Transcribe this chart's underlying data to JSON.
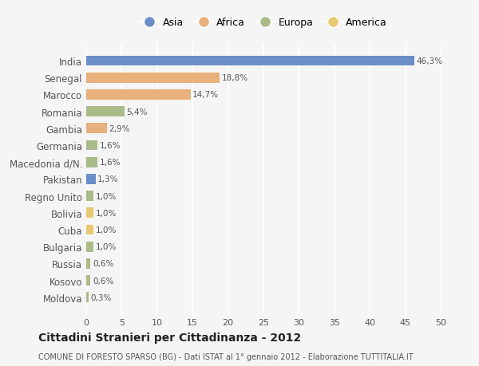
{
  "countries": [
    "Moldova",
    "Kosovo",
    "Russia",
    "Bulgaria",
    "Cuba",
    "Bolivia",
    "Regno Unito",
    "Pakistan",
    "Macedonia d/N.",
    "Germania",
    "Gambia",
    "Romania",
    "Marocco",
    "Senegal",
    "India"
  ],
  "values": [
    0.3,
    0.6,
    0.6,
    1.0,
    1.0,
    1.0,
    1.0,
    1.3,
    1.6,
    1.6,
    2.9,
    5.4,
    14.7,
    18.8,
    46.3
  ],
  "labels": [
    "0,3%",
    "0,6%",
    "0,6%",
    "1,0%",
    "1,0%",
    "1,0%",
    "1,0%",
    "1,3%",
    "1,6%",
    "1,6%",
    "2,9%",
    "5,4%",
    "14,7%",
    "18,8%",
    "46,3%"
  ],
  "continents": [
    "Europa",
    "Europa",
    "Europa",
    "Europa",
    "America",
    "America",
    "Europa",
    "Asia",
    "Europa",
    "Europa",
    "Africa",
    "Europa",
    "Africa",
    "Africa",
    "Asia"
  ],
  "continent_colors": {
    "Asia": "#6a8fc8",
    "Africa": "#e8b07a",
    "Europa": "#a8bb88",
    "America": "#e8c870"
  },
  "legend_order": [
    "Asia",
    "Africa",
    "Europa",
    "America"
  ],
  "bg_color": "#f5f5f5",
  "grid_color": "#ffffff",
  "title": "Cittadini Stranieri per Cittadinanza - 2012",
  "subtitle": "COMUNE DI FORESTO SPARSO (BG) - Dati ISTAT al 1° gennaio 2012 - Elaborazione TUTTITALIA.IT",
  "xlabel_vals": [
    0,
    5,
    10,
    15,
    20,
    25,
    30,
    35,
    40,
    45,
    50
  ],
  "xlim": [
    0,
    50
  ]
}
